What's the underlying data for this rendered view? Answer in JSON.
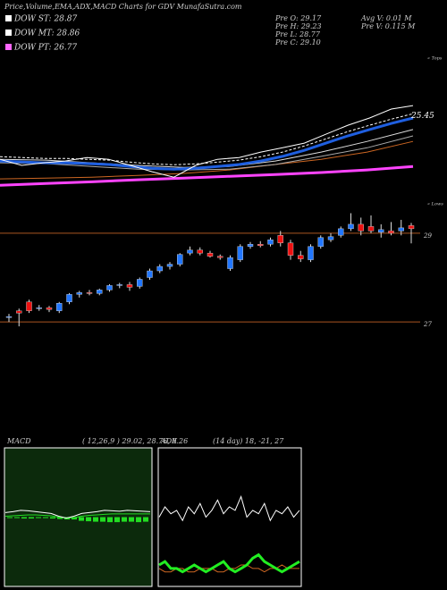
{
  "header": {
    "title": "Price,Volume,EMA,ADX,MACD Charts for GDV MunafaSutra.com"
  },
  "legend": [
    {
      "label": "DOW ST: 28.87",
      "color": "#ffffff"
    },
    {
      "label": "DOW MT: 28.86",
      "color": "#ffffff"
    },
    {
      "label": "DOW PT: 26.77",
      "color": "#ff66ff"
    }
  ],
  "stats": [
    "Pre  O: 29.17",
    "Pre  H: 29.23",
    "Pre  L: 28.77",
    "Pre  C: 29.10"
  ],
  "volume": [
    "Avg V: 0.01 M",
    "Pre  V: 0.115 M"
  ],
  "upper": {
    "ylim": [
      22.5,
      27.3
    ],
    "label": 25.45,
    "tops": "« Tops",
    "lows": "« Lows",
    "series": [
      {
        "color": "#ff44ff",
        "style": "thick",
        "values": [
          23.05,
          23.11,
          23.17,
          23.24,
          23.3,
          23.36,
          23.42,
          23.49,
          23.58,
          23.7
        ]
      },
      {
        "color": "#cc6622",
        "style": "thin",
        "values": [
          23.27,
          23.3,
          23.33,
          23.39,
          23.46,
          23.58,
          23.77,
          23.95,
          24.2,
          24.57
        ]
      },
      {
        "color": "#aaaaaa",
        "style": "thin",
        "values": [
          23.83,
          23.8,
          23.7,
          23.61,
          23.58,
          23.61,
          23.77,
          24.05,
          24.35,
          24.76
        ]
      },
      {
        "color": "#dddddd",
        "style": "thin",
        "values": [
          23.95,
          23.92,
          23.83,
          23.74,
          23.67,
          23.7,
          23.89,
          24.2,
          24.57,
          24.98
        ]
      },
      {
        "color": "#1f5fe0",
        "style": "thick",
        "values": [
          23.89,
          23.86,
          23.83,
          23.83,
          23.8,
          23.77,
          23.7,
          23.64,
          23.61,
          23.64,
          23.7,
          23.77,
          23.89,
          24.05,
          24.26,
          24.51,
          24.76,
          24.98,
          25.19,
          25.38
        ]
      },
      {
        "color": "#ffffff",
        "style": "dashed",
        "values": [
          24.04,
          24.01,
          23.98,
          23.98,
          23.95,
          23.92,
          23.85,
          23.79,
          23.76,
          23.79,
          23.85,
          23.92,
          24.04,
          24.2,
          24.41,
          24.66,
          24.91,
          25.13,
          25.34,
          25.53
        ]
      },
      {
        "color": "#ffffff",
        "style": "thin",
        "values": [
          23.95,
          23.74,
          23.83,
          23.89,
          24.01,
          23.95,
          23.74,
          23.52,
          23.33,
          23.74,
          23.95,
          24.01,
          24.2,
          24.35,
          24.51,
          24.82,
          25.13,
          25.38,
          25.69,
          25.81
        ]
      }
    ]
  },
  "candles": {
    "ylim": [
      26.7,
      29.5
    ],
    "levels": [
      29,
      27
    ],
    "level_color": "#aa5522",
    "up": "#2277ff",
    "down": "#ee1111",
    "ohlc": [
      [
        27.1,
        27.18,
        27.0,
        27.12
      ],
      [
        27.25,
        27.3,
        26.9,
        27.2
      ],
      [
        27.45,
        27.5,
        27.2,
        27.25
      ],
      [
        27.3,
        27.38,
        27.25,
        27.32
      ],
      [
        27.32,
        27.36,
        27.22,
        27.28
      ],
      [
        27.25,
        27.45,
        27.2,
        27.42
      ],
      [
        27.45,
        27.65,
        27.4,
        27.62
      ],
      [
        27.62,
        27.7,
        27.55,
        27.66
      ],
      [
        27.66,
        27.72,
        27.6,
        27.64
      ],
      [
        27.64,
        27.75,
        27.6,
        27.72
      ],
      [
        27.72,
        27.85,
        27.68,
        27.82
      ],
      [
        27.82,
        27.88,
        27.76,
        27.84
      ],
      [
        27.84,
        27.9,
        27.7,
        27.78
      ],
      [
        27.8,
        28.0,
        27.75,
        27.96
      ],
      [
        28.0,
        28.2,
        27.95,
        28.15
      ],
      [
        28.15,
        28.3,
        28.1,
        28.25
      ],
      [
        28.25,
        28.35,
        28.18,
        28.3
      ],
      [
        28.3,
        28.55,
        28.25,
        28.52
      ],
      [
        28.55,
        28.7,
        28.5,
        28.62
      ],
      [
        28.62,
        28.68,
        28.5,
        28.55
      ],
      [
        28.55,
        28.6,
        28.45,
        28.48
      ],
      [
        28.48,
        28.52,
        28.4,
        28.45
      ],
      [
        28.2,
        28.5,
        28.15,
        28.45
      ],
      [
        28.4,
        28.75,
        28.35,
        28.7
      ],
      [
        28.7,
        28.8,
        28.65,
        28.75
      ],
      [
        28.75,
        28.82,
        28.68,
        28.72
      ],
      [
        28.75,
        28.9,
        28.7,
        28.85
      ],
      [
        28.95,
        29.05,
        28.7,
        28.78
      ],
      [
        28.78,
        28.85,
        28.4,
        28.5
      ],
      [
        28.5,
        28.6,
        28.35,
        28.42
      ],
      [
        28.4,
        28.75,
        28.35,
        28.7
      ],
      [
        28.7,
        28.95,
        28.65,
        28.9
      ],
      [
        28.85,
        29.0,
        28.8,
        28.92
      ],
      [
        28.95,
        29.15,
        28.9,
        29.1
      ],
      [
        29.1,
        29.45,
        29.05,
        29.2
      ],
      [
        29.2,
        29.35,
        28.95,
        29.05
      ],
      [
        29.15,
        29.4,
        29.0,
        29.05
      ],
      [
        29.02,
        29.2,
        28.9,
        29.08
      ],
      [
        29.05,
        29.25,
        28.95,
        29.0
      ],
      [
        29.05,
        29.3,
        28.95,
        29.12
      ],
      [
        29.17,
        29.23,
        28.77,
        29.1
      ]
    ]
  },
  "macd": {
    "title": "MACD",
    "params": "( 12,26,9 ) 29.02, 28.76, 0.26",
    "ylim": [
      -1.5,
      1.5
    ],
    "background": "#0c2a0c",
    "histogram": {
      "color": "#22dd22",
      "values": [
        -0.02,
        -0.02,
        -0.03,
        -0.03,
        -0.02,
        -0.02,
        -0.03,
        -0.04,
        -0.05,
        -0.05,
        -0.08,
        -0.09,
        -0.1,
        -0.1,
        -0.11,
        -0.11,
        -0.1,
        -0.1,
        -0.11,
        -0.1
      ]
    },
    "series": [
      {
        "color": "#22dd22",
        "values": [
          0.02,
          0.03,
          0.04,
          0.05,
          0.05,
          0.04,
          0.03,
          0.0,
          -0.02,
          -0.01,
          0.02,
          0.04,
          0.05,
          0.06,
          0.07,
          0.07,
          0.07,
          0.07,
          0.07,
          0.07
        ]
      },
      {
        "color": "#ffffff",
        "values": [
          0.1,
          0.12,
          0.15,
          0.14,
          0.12,
          0.1,
          0.08,
          0.02,
          -0.02,
          0.02,
          0.08,
          0.1,
          0.12,
          0.15,
          0.14,
          0.13,
          0.15,
          0.14,
          0.13,
          0.12
        ]
      }
    ]
  },
  "adx": {
    "title": "ADX",
    "params": "(14 day) 18, -21, 27",
    "ylim": [
      0,
      40
    ],
    "series": [
      {
        "color": "#ffffff",
        "values": [
          20,
          23,
          21,
          22,
          19,
          23,
          21,
          24,
          20,
          22,
          25,
          21,
          23,
          22,
          26,
          20,
          22,
          21,
          24,
          19,
          22,
          21,
          23,
          20,
          22
        ]
      },
      {
        "color": "#cc6622",
        "values": [
          5,
          4,
          4,
          5,
          5,
          4,
          4,
          5,
          5,
          5,
          4,
          4,
          5,
          5,
          6,
          6,
          5,
          5,
          4,
          5,
          5,
          6,
          5,
          5,
          5
        ]
      },
      {
        "color": "#22ee22",
        "values": [
          6,
          7,
          5,
          5,
          4,
          5,
          6,
          5,
          4,
          5,
          6,
          7,
          5,
          4,
          5,
          6,
          8,
          9,
          7,
          6,
          5,
          4,
          5,
          6,
          7
        ]
      }
    ]
  }
}
